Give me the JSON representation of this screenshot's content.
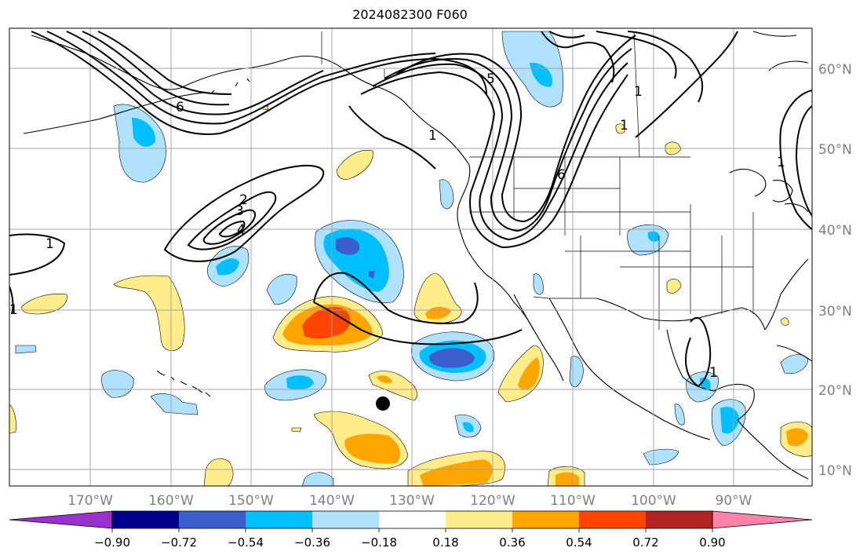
{
  "title": "2024082300 F060",
  "lat_labels": [
    "60°N",
    "50°N",
    "40°N",
    "30°N",
    "20°N",
    "10°N"
  ],
  "lon_labels": [
    "170°W",
    "160°W",
    "150°W",
    "140°W",
    "130°W",
    "120°W",
    "110°W",
    "100°W",
    "90°W"
  ],
  "colorbar": {
    "colors": [
      "#9932CC",
      "#00008B",
      "#3A5FCD",
      "#00BFFF",
      "#B0E2FF",
      "#FFFFFF",
      "#FFEC8B",
      "#FFA500",
      "#FF4500",
      "#B22222",
      "#FF82AB"
    ],
    "tick_labels": [
      "−0.90",
      "−0.72",
      "−0.54",
      "−0.36",
      "−0.18",
      "0.18",
      "0.36",
      "0.54",
      "0.72",
      "0.90"
    ]
  },
  "contour_labels": [
    "1",
    "2",
    "3",
    "4",
    "5",
    "6",
    "6",
    "1",
    "1",
    "1",
    "1",
    "1",
    "1"
  ],
  "colors": {
    "grid": "#a0a0a0",
    "axis_label": "#808080",
    "coast": "#000000"
  }
}
